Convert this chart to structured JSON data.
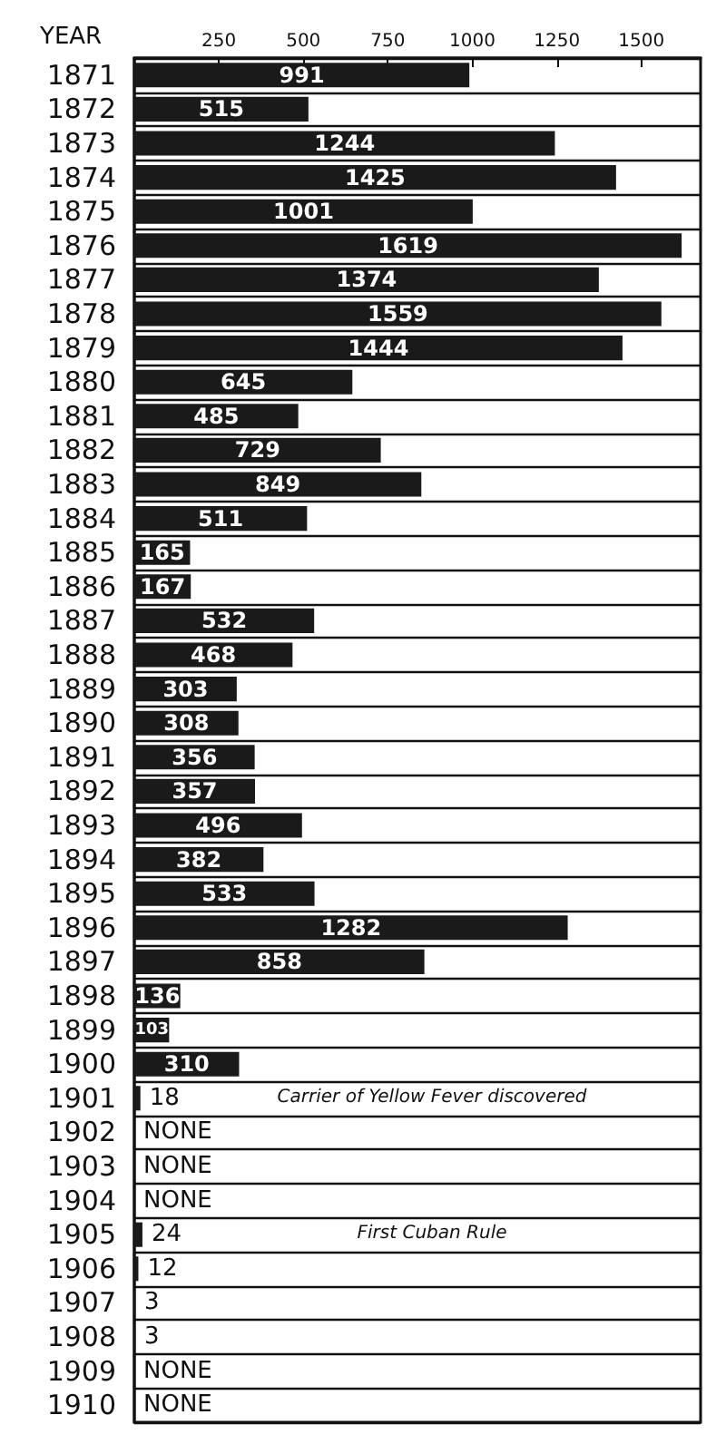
{
  "chart_data": {
    "type": "bar",
    "orientation": "horizontal",
    "ylabel": "YEAR",
    "categories": [
      "1871",
      "1872",
      "1873",
      "1874",
      "1875",
      "1876",
      "1877",
      "1878",
      "1879",
      "1880",
      "1881",
      "1882",
      "1883",
      "1884",
      "1885",
      "1886",
      "1887",
      "1888",
      "1889",
      "1890",
      "1891",
      "1892",
      "1893",
      "1894",
      "1895",
      "1896",
      "1897",
      "1898",
      "1899",
      "1900",
      "1901",
      "1902",
      "1903",
      "1904",
      "1905",
      "1906",
      "1907",
      "1908",
      "1909",
      "1910"
    ],
    "values": [
      991,
      515,
      1244,
      1425,
      1001,
      1619,
      1374,
      1559,
      1444,
      645,
      485,
      729,
      849,
      511,
      165,
      167,
      532,
      468,
      303,
      308,
      356,
      357,
      496,
      382,
      533,
      1282,
      858,
      136,
      103,
      310,
      18,
      0,
      0,
      0,
      24,
      12,
      3,
      3,
      0,
      0
    ],
    "value_labels": [
      "991",
      "515",
      "1244",
      "1425",
      "1001",
      "1619",
      "1374",
      "1559",
      "1444",
      "645",
      "485",
      "729",
      "849",
      "511",
      "165",
      "167",
      "532",
      "468",
      "303",
      "308",
      "356",
      "357",
      "496",
      "382",
      "533",
      "1282",
      "858",
      "136",
      "103",
      "310",
      "18",
      "NONE",
      "NONE",
      "NONE",
      "24",
      "12",
      "3",
      "3",
      "NONE",
      "NONE"
    ],
    "color": "#1a1a1a",
    "xlim": [
      0,
      1675
    ],
    "xticks": [
      250,
      500,
      750,
      1000,
      1250,
      1500
    ],
    "grid": "y",
    "annotations": [
      "Carrier of Yellow Fever discovered",
      "First Cuban Rule"
    ]
  }
}
